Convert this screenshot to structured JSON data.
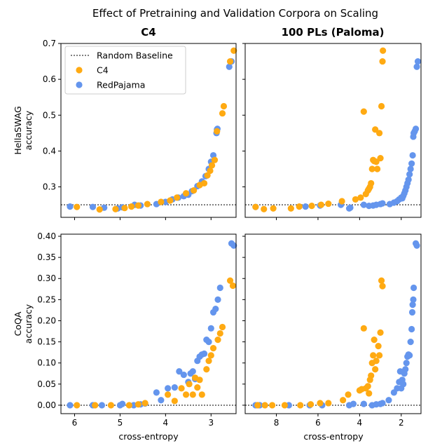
{
  "chart_data": {
    "type": "scatter",
    "title": "Effect of Pretraining and Validation Corpora on Scaling",
    "colors": {
      "C4": "#FFAA12",
      "RedPajama": "#6495ED",
      "baseline": "#555555"
    },
    "legend": {
      "position": "top-left",
      "entries": [
        {
          "label": "Random Baseline",
          "kind": "line"
        },
        {
          "label": "C4",
          "kind": "C4"
        },
        {
          "label": "RedPajama",
          "kind": "RedPajama"
        }
      ]
    },
    "columns": [
      {
        "title": "C4",
        "xlabel": "cross-entropy",
        "xlim": [
          6.3,
          2.45
        ],
        "xticks": [
          6,
          5,
          4,
          3
        ],
        "xtick_labels": [
          "6",
          "5",
          "4",
          "3"
        ]
      },
      {
        "title": "100 PLs (Paloma)",
        "xlabel": "cross-entropy",
        "xlim": [
          9.5,
          1.05
        ],
        "xticks": [
          8,
          6,
          4,
          2
        ],
        "xtick_labels": [
          "8",
          "6",
          "4",
          "2"
        ]
      }
    ],
    "rows": [
      {
        "ylabel": "HellaSWAG\naccuracy",
        "ylim": [
          0.215,
          0.7
        ],
        "yticks": [
          0.3,
          0.4,
          0.5,
          0.6,
          0.7
        ],
        "ytick_labels": [
          "0.3",
          "0.4",
          "0.5",
          "0.6",
          "0.7"
        ],
        "baseline": 0.25
      },
      {
        "ylabel": "CoQA\naccuracy",
        "ylim": [
          -0.02,
          0.405
        ],
        "yticks": [
          0.0,
          0.05,
          0.1,
          0.15,
          0.2,
          0.25,
          0.3,
          0.35,
          0.4
        ],
        "ytick_labels": [
          "0.00",
          "0.05",
          "0.10",
          "0.15",
          "0.20",
          "0.25",
          "0.30",
          "0.35",
          "0.40"
        ],
        "baseline": 0.0
      }
    ],
    "panels": [
      {
        "row": 0,
        "col": 0,
        "series": [
          {
            "name": "RedPajama",
            "x": [
              6.1,
              5.6,
              5.35,
              5.05,
              4.95,
              4.68,
              4.55,
              4.2,
              4.0,
              3.85,
              3.72,
              3.6,
              3.5,
              3.42,
              3.3,
              3.2,
              3.12,
              3.05,
              3.0,
              2.95,
              2.88,
              2.87,
              2.86,
              2.6,
              2.55
            ],
            "y": [
              0.245,
              0.244,
              0.242,
              0.24,
              0.243,
              0.25,
              0.248,
              0.252,
              0.258,
              0.265,
              0.27,
              0.274,
              0.278,
              0.288,
              0.302,
              0.315,
              0.33,
              0.35,
              0.37,
              0.388,
              0.45,
              0.46,
              0.462,
              0.635,
              0.65
            ]
          },
          {
            "name": "C4",
            "x": [
              5.95,
              5.45,
              5.1,
              4.9,
              4.75,
              4.6,
              4.4,
              4.1,
              3.9,
              3.75,
              3.55,
              3.38,
              3.25,
              3.15,
              3.08,
              3.02,
              2.98,
              2.92,
              2.87,
              2.75,
              2.72,
              2.58,
              2.5
            ],
            "y": [
              0.244,
              0.237,
              0.238,
              0.241,
              0.245,
              0.248,
              0.252,
              0.258,
              0.262,
              0.27,
              0.282,
              0.29,
              0.305,
              0.31,
              0.332,
              0.345,
              0.36,
              0.375,
              0.455,
              0.505,
              0.525,
              0.65,
              0.68
            ]
          }
        ]
      },
      {
        "row": 0,
        "col": 1,
        "series": [
          {
            "name": "RedPajama",
            "x": [
              9.0,
              6.6,
              5.9,
              4.9,
              4.5,
              4.45,
              3.8,
              3.55,
              3.35,
              3.2,
              3.0,
              2.9,
              2.55,
              2.35,
              2.2,
              2.1,
              2.0,
              1.95,
              1.9,
              1.85,
              1.8,
              1.75,
              1.7,
              1.65,
              1.6,
              1.55,
              1.5,
              1.45,
              1.42,
              1.4,
              1.35,
              1.3,
              1.25,
              1.2
            ],
            "y": [
              0.244,
              0.245,
              0.248,
              0.25,
              0.24,
              0.242,
              0.25,
              0.247,
              0.248,
              0.25,
              0.252,
              0.254,
              0.252,
              0.256,
              0.26,
              0.265,
              0.27,
              0.268,
              0.275,
              0.282,
              0.29,
              0.3,
              0.31,
              0.32,
              0.335,
              0.35,
              0.365,
              0.388,
              0.44,
              0.45,
              0.455,
              0.462,
              0.635,
              0.65
            ]
          },
          {
            "name": "C4",
            "x": [
              9.0,
              8.6,
              8.15,
              7.3,
              6.9,
              6.3,
              5.85,
              5.5,
              4.85,
              4.2,
              3.95,
              3.8,
              3.7,
              3.6,
              3.55,
              3.5,
              3.45,
              3.4,
              3.35,
              3.3,
              3.25,
              3.2,
              3.15,
              3.05,
              3.0,
              2.95
            ],
            "y": [
              0.244,
              0.238,
              0.24,
              0.24,
              0.245,
              0.247,
              0.25,
              0.253,
              0.26,
              0.265,
              0.27,
              0.51,
              0.28,
              0.29,
              0.295,
              0.3,
              0.31,
              0.35,
              0.375,
              0.372,
              0.46,
              0.37,
              0.35,
              0.45,
              0.38,
              0.525
            ]
          },
          {
            "name": "C4",
            "x": [
              2.9,
              2.88
            ],
            "y": [
              0.65,
              0.68
            ]
          }
        ]
      },
      {
        "row": 1,
        "col": 0,
        "series": [
          {
            "name": "RedPajama",
            "x": [
              6.1,
              5.6,
              5.4,
              5.0,
              4.95,
              4.7,
              4.55,
              4.45,
              4.2,
              4.1,
              3.95,
              3.8,
              3.7,
              3.6,
              3.5,
              3.45,
              3.4,
              3.35,
              3.3,
              3.25,
              3.2,
              3.15,
              3.1,
              3.05,
              3.0,
              2.95,
              2.9,
              2.85,
              2.8,
              2.55,
              2.5
            ],
            "y": [
              0.0,
              0.0,
              0.0,
              0.0,
              0.003,
              0.0,
              0.002,
              0.004,
              0.03,
              0.012,
              0.04,
              0.042,
              0.08,
              0.072,
              0.055,
              0.075,
              0.08,
              0.062,
              0.105,
              0.115,
              0.12,
              0.122,
              0.155,
              0.15,
              0.182,
              0.22,
              0.228,
              0.25,
              0.278,
              0.383,
              0.378
            ]
          },
          {
            "name": "C4",
            "x": [
              5.95,
              5.55,
              5.2,
              4.8,
              4.6,
              4.45,
              3.95,
              3.8,
              3.65,
              3.55,
              3.48,
              3.4,
              3.35,
              3.3,
              3.25,
              3.2,
              3.1,
              3.05,
              3.0,
              2.95,
              2.85,
              2.8,
              2.75,
              2.58,
              2.52
            ],
            "y": [
              0.0,
              0.0,
              0.0,
              0.0,
              0.002,
              0.005,
              0.025,
              0.01,
              0.04,
              0.025,
              0.05,
              0.025,
              0.065,
              0.042,
              0.06,
              0.025,
              0.085,
              0.105,
              0.118,
              0.135,
              0.155,
              0.17,
              0.185,
              0.295,
              0.283
            ]
          }
        ]
      },
      {
        "row": 1,
        "col": 1,
        "series": [
          {
            "name": "RedPajama",
            "x": [
              9.0,
              8.8,
              7.4,
              6.4,
              5.8,
              4.5,
              4.3,
              3.8,
              3.4,
              3.2,
              3.0,
              2.9,
              2.6,
              2.35,
              2.2,
              2.1,
              2.05,
              2.0,
              1.95,
              1.9,
              1.85,
              1.8,
              1.75,
              1.7,
              1.65,
              1.6,
              1.55,
              1.5,
              1.47,
              1.45,
              1.42,
              1.4,
              1.3,
              1.25
            ],
            "y": [
              0.0,
              0.0,
              0.0,
              0.0,
              0.0,
              0.0,
              0.003,
              0.003,
              0.0,
              0.002,
              0.003,
              0.005,
              0.012,
              0.03,
              0.04,
              0.055,
              0.08,
              0.04,
              0.06,
              0.05,
              0.075,
              0.085,
              0.1,
              0.115,
              0.12,
              0.118,
              0.15,
              0.18,
              0.22,
              0.238,
              0.25,
              0.278,
              0.383,
              0.378
            ]
          },
          {
            "name": "C4",
            "x": [
              8.9,
              8.55,
              8.2,
              7.6,
              6.85,
              6.35,
              5.9,
              5.5,
              4.8,
              4.55,
              4.0,
              3.9,
              3.8,
              3.7,
              3.6,
              3.55,
              3.5,
              3.45,
              3.4,
              3.35,
              3.3,
              3.25,
              3.2,
              3.1,
              3.05,
              3.0,
              2.95,
              2.9
            ],
            "y": [
              0.0,
              0.0,
              0.0,
              0.0,
              0.0,
              0.002,
              0.005,
              0.005,
              0.012,
              0.025,
              0.035,
              0.038,
              0.182,
              0.04,
              0.045,
              0.028,
              0.06,
              0.07,
              0.1,
              0.118,
              0.155,
              0.085,
              0.105,
              0.14,
              0.118,
              0.172,
              0.295,
              0.282
            ]
          }
        ]
      }
    ]
  }
}
